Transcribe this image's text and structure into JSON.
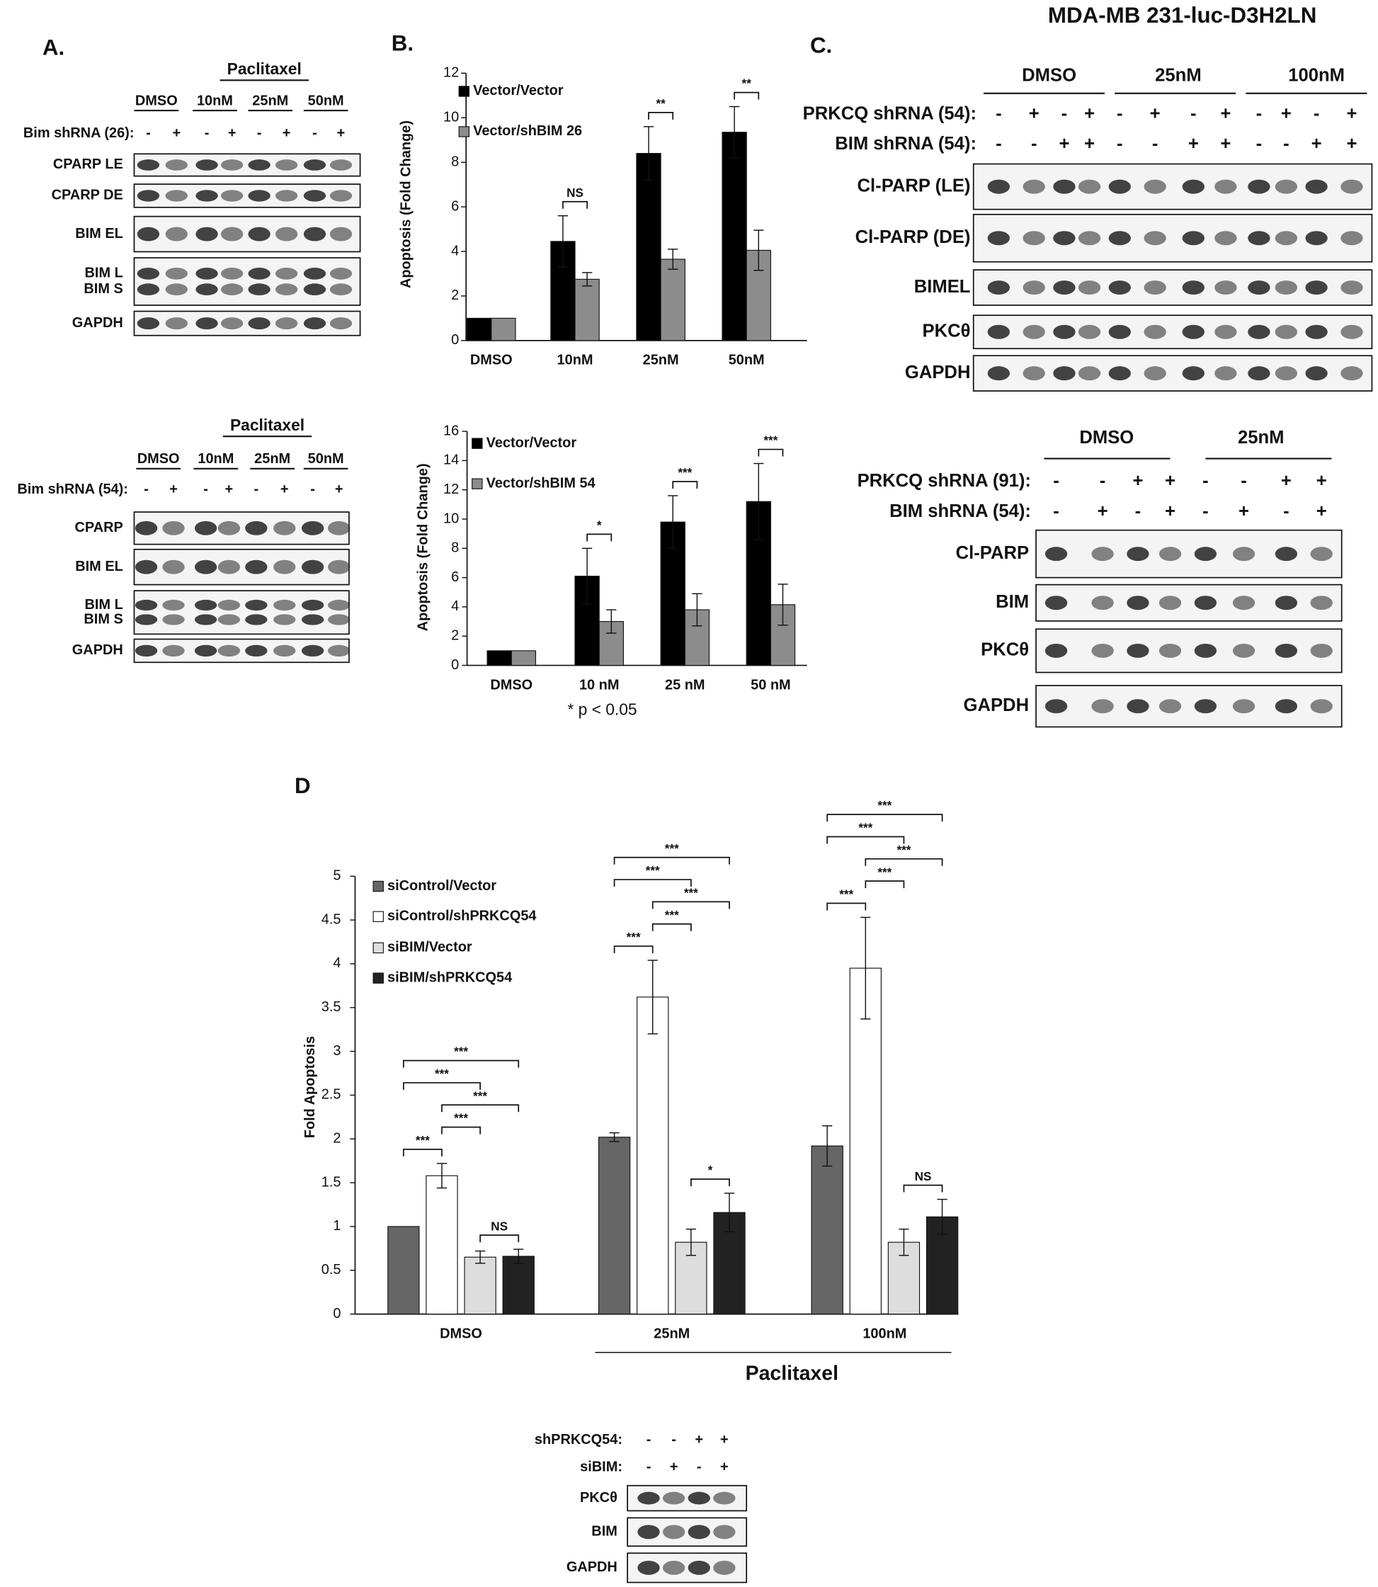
{
  "figure": {
    "panel_a": {
      "label": "A.",
      "blots": [
        {
          "treatment": "Paclitaxel",
          "groups": [
            "DMSO",
            "10nM",
            "25nM",
            "50nM"
          ],
          "rows": [
            {
              "label": "Bim shRNA (26):",
              "signs": [
                "-",
                "+",
                "-",
                "+",
                "-",
                "+",
                "-",
                "+"
              ]
            }
          ],
          "bands": [
            [
              "CPARP LE"
            ],
            [
              "CPARP DE"
            ],
            [
              "BIM EL"
            ],
            [
              "BIM L",
              "BIM S"
            ],
            [
              "GAPDH"
            ]
          ]
        },
        {
          "treatment": "Paclitaxel",
          "groups": [
            "DMSO",
            "10nM",
            "25nM",
            "50nM"
          ],
          "rows": [
            {
              "label": "Bim shRNA (54):",
              "signs": [
                "-",
                "+",
                "-",
                "+",
                "-",
                "+",
                "-",
                "+"
              ]
            }
          ],
          "bands": [
            [
              "CPARP"
            ],
            [
              "BIM EL"
            ],
            [
              "BIM L",
              "BIM S"
            ],
            [
              "GAPDH"
            ]
          ]
        }
      ]
    },
    "panel_b": {
      "label": "B."
    },
    "panel_c": {
      "label": "C.",
      "title": "MDA-MB 231-luc-D3H2LN",
      "blots": [
        {
          "groups": [
            "DMSO",
            "25nM",
            "100nM"
          ],
          "rows": [
            {
              "label": "PRKCQ shRNA (54):",
              "signs": [
                "-",
                "+",
                "-",
                "+",
                "-",
                "+",
                "-",
                "+",
                "-",
                "+",
                "-",
                "+"
              ]
            },
            {
              "label": "BIM shRNA (54):",
              "signs": [
                "-",
                "-",
                "+",
                "+",
                "-",
                "-",
                "+",
                "+",
                "-",
                "-",
                "+",
                "+"
              ]
            }
          ],
          "bands": [
            [
              "Cl-PARP (LE)"
            ],
            [
              "Cl-PARP (DE)"
            ],
            [
              "BIMEL"
            ],
            [
              "PKCθ"
            ],
            [
              "GAPDH"
            ]
          ]
        },
        {
          "groups": [
            "DMSO",
            "25nM"
          ],
          "rows": [
            {
              "label": "PRKCQ shRNA (91):",
              "signs": [
                "-",
                "-",
                "+",
                "+",
                "-",
                "-",
                "+",
                "+"
              ]
            },
            {
              "label": "BIM shRNA (54):",
              "signs": [
                "-",
                "+",
                "-",
                "+",
                "-",
                "+",
                "-",
                "+"
              ]
            }
          ],
          "bands": [
            [
              "Cl-PARP"
            ],
            [
              "BIM"
            ],
            [
              "PKCθ"
            ],
            [
              "GAPDH"
            ]
          ]
        }
      ]
    },
    "panel_d": {
      "label": "D",
      "blot": {
        "rows": [
          {
            "label": "shPRKCQ54:",
            "signs": [
              "-",
              "-",
              "+",
              "+"
            ]
          },
          {
            "label": "siBIM:",
            "signs": [
              "-",
              "+",
              "-",
              "+"
            ]
          }
        ],
        "bands": [
          [
            "PKCθ"
          ],
          [
            "BIM"
          ],
          [
            "GAPDH"
          ]
        ]
      }
    }
  },
  "chart_data": [
    {
      "type": "bar",
      "y_label": "Apoptosis (Fold Change)",
      "categories": [
        "DMSO",
        "10nM",
        "25nM",
        "50nM"
      ],
      "series": [
        {
          "name": "Vector/Vector",
          "color": "#000000",
          "values": [
            1,
            4.45,
            8.4,
            9.35
          ],
          "errors": [
            0,
            1.15,
            1.2,
            1.15
          ]
        },
        {
          "name": "Vector/shBIM 26",
          "color": "#8c8c8c",
          "values": [
            1,
            2.75,
            3.65,
            4.05
          ],
          "errors": [
            0,
            0.3,
            0.45,
            0.9
          ]
        }
      ],
      "ylim": [
        0,
        12
      ],
      "yticks": [
        0,
        2,
        4,
        6,
        8,
        10,
        12
      ],
      "annotations": [
        {
          "category": 1,
          "from": 0,
          "to": 1,
          "text": "NS"
        },
        {
          "category": 2,
          "from": 0,
          "to": 1,
          "text": "**"
        },
        {
          "category": 3,
          "from": 0,
          "to": 1,
          "text": "**"
        }
      ]
    },
    {
      "type": "bar",
      "y_label": "Apoptosis (Fold Change)",
      "categories": [
        "DMSO",
        "10 nM",
        "25 nM",
        "50 nM"
      ],
      "series": [
        {
          "name": "Vector/Vector",
          "color": "#000000",
          "values": [
            1,
            6.1,
            9.8,
            11.2
          ],
          "errors": [
            0,
            1.9,
            1.8,
            2.6
          ]
        },
        {
          "name": "Vector/shBIM 54",
          "color": "#8c8c8c",
          "values": [
            1,
            3.0,
            3.8,
            4.15
          ],
          "errors": [
            0,
            0.8,
            1.1,
            1.4
          ]
        }
      ],
      "ylim": [
        0,
        16
      ],
      "yticks": [
        0,
        2,
        4,
        6,
        8,
        10,
        12,
        14,
        16
      ],
      "footnote": "* p < 0.05",
      "annotations": [
        {
          "category": 1,
          "from": 0,
          "to": 1,
          "text": "*"
        },
        {
          "category": 2,
          "from": 0,
          "to": 1,
          "text": "***"
        },
        {
          "category": 3,
          "from": 0,
          "to": 1,
          "text": "***"
        }
      ]
    },
    {
      "type": "bar",
      "y_label": "Fold Apoptosis",
      "categories": [
        "DMSO",
        "25nM",
        "100nM"
      ],
      "x_group_label": "Paclitaxel",
      "series": [
        {
          "name": "siControl/Vector",
          "color": "#666666",
          "values": [
            1,
            2.02,
            1.92
          ],
          "errors": [
            0,
            0.05,
            0.23
          ]
        },
        {
          "name": "siControl/shPRKCQ54",
          "color": "#ffffff",
          "values": [
            1.58,
            3.62,
            3.95
          ],
          "errors": [
            0.14,
            0.42,
            0.58
          ]
        },
        {
          "name": "siBIM/Vector",
          "color": "#dddddd",
          "values": [
            0.65,
            0.82,
            0.82
          ],
          "errors": [
            0.07,
            0.15,
            0.15
          ]
        },
        {
          "name": "siBIM/shPRKCQ54",
          "color": "#222222",
          "values": [
            0.66,
            1.16,
            1.11
          ],
          "errors": [
            0.08,
            0.22,
            0.2
          ]
        }
      ],
      "ylim": [
        0,
        5
      ],
      "yticks": [
        0,
        0.5,
        1,
        1.5,
        2,
        2.5,
        3,
        3.5,
        4,
        4.5,
        5
      ],
      "annotations": [
        {
          "category": 0,
          "from": 2,
          "to": 3,
          "text": "NS"
        },
        {
          "category": 0,
          "from": 0,
          "to": 1,
          "text": "***"
        },
        {
          "category": 0,
          "from": 1,
          "to": 2,
          "text": "***"
        },
        {
          "category": 0,
          "from": 1,
          "to": 3,
          "text": "***"
        },
        {
          "category": 0,
          "from": 0,
          "to": 2,
          "text": "***"
        },
        {
          "category": 0,
          "from": 0,
          "to": 3,
          "text": "***"
        },
        {
          "category": 1,
          "from": 2,
          "to": 3,
          "text": "*"
        },
        {
          "category": 1,
          "from": 0,
          "to": 1,
          "text": "***"
        },
        {
          "category": 1,
          "from": 1,
          "to": 2,
          "text": "***"
        },
        {
          "category": 1,
          "from": 1,
          "to": 3,
          "text": "***"
        },
        {
          "category": 1,
          "from": 0,
          "to": 2,
          "text": "***"
        },
        {
          "category": 1,
          "from": 0,
          "to": 3,
          "text": "***"
        },
        {
          "category": 2,
          "from": 2,
          "to": 3,
          "text": "NS"
        },
        {
          "category": 2,
          "from": 0,
          "to": 1,
          "text": "***"
        },
        {
          "category": 2,
          "from": 1,
          "to": 2,
          "text": "***"
        },
        {
          "category": 2,
          "from": 1,
          "to": 3,
          "text": "***"
        },
        {
          "category": 2,
          "from": 0,
          "to": 2,
          "text": "***"
        },
        {
          "category": 2,
          "from": 0,
          "to": 3,
          "text": "***"
        }
      ]
    }
  ]
}
